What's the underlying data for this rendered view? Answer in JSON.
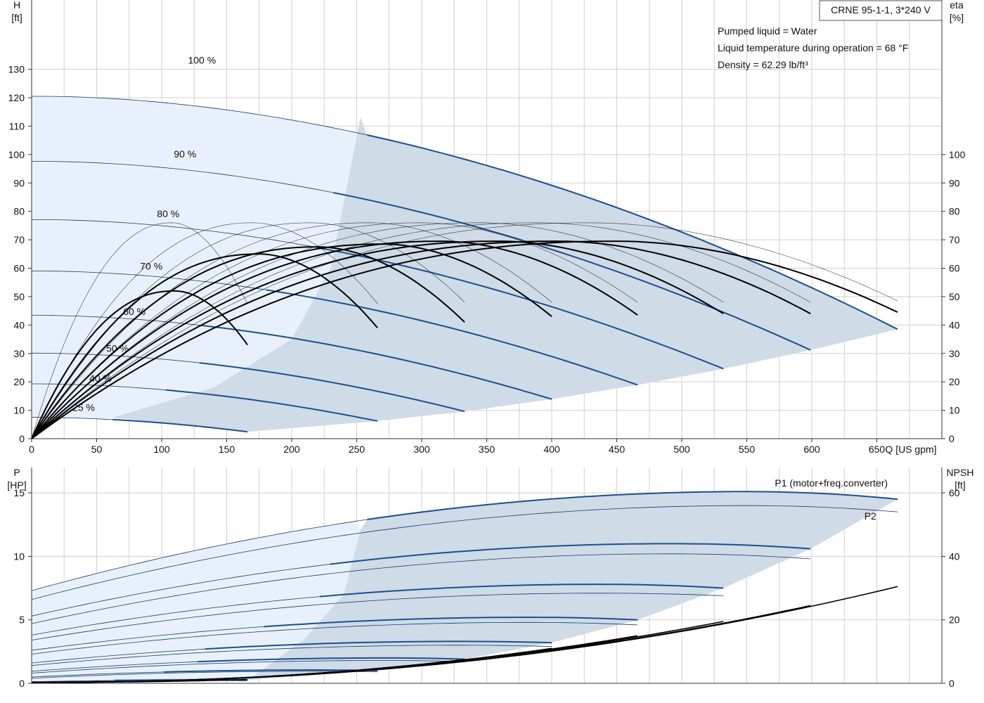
{
  "colors": {
    "accent": "#1f4e8c",
    "region_light": "#e8f1fb",
    "region_dark": "#cfdbe7",
    "thin_line": "#1a3a66",
    "eta": "#000000",
    "grid": "#cfcfcf"
  },
  "header": {
    "product": "CRNE 95-1-1, 3*240 V",
    "info": [
      "Pumped liquid = Water",
      "Liquid temperature during operation = 68 °F",
      "Density = 62.29 lb/ft³"
    ]
  },
  "chart_data": [
    {
      "type": "line",
      "name": "head",
      "title": "",
      "xlabel": "Q [US gpm]",
      "ylabel": "H [ft]",
      "y2label": "eta [%]",
      "y_axis_label_lines": [
        "H",
        "[ft]"
      ],
      "y2_axis_label_lines": [
        "eta",
        "[%]"
      ],
      "xlim": [
        0,
        700
      ],
      "ylim": [
        0,
        144
      ],
      "y2lim": [
        0,
        144
      ],
      "xticks": [
        0,
        50,
        100,
        150,
        200,
        250,
        300,
        350,
        400,
        450,
        500,
        550,
        600,
        650
      ],
      "yticks": [
        0,
        10,
        20,
        30,
        40,
        50,
        60,
        70,
        80,
        90,
        100,
        110,
        120,
        130
      ],
      "y2ticks": [
        0,
        10,
        20,
        30,
        40,
        50,
        60,
        70,
        80,
        90,
        100
      ],
      "grid": true,
      "speed_curves": [
        {
          "label": "100 %",
          "label_at": [
            131,
            132
          ],
          "h0": 120.5,
          "qmax": 666,
          "hend": 38.5,
          "peak_q": 50,
          "peak_rise": 0.6
        },
        {
          "label": "90 %",
          "label_at": [
            118,
            99
          ],
          "h0": 97.6,
          "qmax": 599,
          "hend": 31.2,
          "peak_q": 45,
          "peak_rise": 0.5
        },
        {
          "label": "80 %",
          "label_at": [
            105,
            78
          ],
          "h0": 77.1,
          "qmax": 532,
          "hend": 24.6,
          "peak_q": 40,
          "peak_rise": 0.4
        },
        {
          "label": "70 %",
          "label_at": [
            92,
            59.5
          ],
          "h0": 59.0,
          "qmax": 466,
          "hend": 18.9,
          "peak_q": 35,
          "peak_rise": 0.3
        },
        {
          "label": "60 %",
          "label_at": [
            79,
            43.5
          ],
          "h0": 43.4,
          "qmax": 400,
          "hend": 13.9,
          "peak_q": 30,
          "peak_rise": 0.2
        },
        {
          "label": "50 %",
          "label_at": [
            66,
            30.5
          ],
          "h0": 30.1,
          "qmax": 333,
          "hend": 9.6,
          "peak_q": 25,
          "peak_rise": 0.15
        },
        {
          "label": "40 %",
          "label_at": [
            53,
            20
          ],
          "h0": 19.3,
          "qmax": 266,
          "hend": 6.2,
          "peak_q": 20,
          "peak_rise": 0.1
        },
        {
          "label": "25 %",
          "label_at": [
            40,
            9.8
          ],
          "h0": 7.5,
          "qmax": 166,
          "hend": 2.4,
          "peak_q": 12,
          "peak_rise": 0.05
        }
      ],
      "efficiency_curves": [
        {
          "qmax": 166,
          "peak_q": 110,
          "peak": 52,
          "end": 33,
          "bold": true
        },
        {
          "qmax": 266,
          "peak_q": 175,
          "peak": 65,
          "end": 39,
          "bold": true
        },
        {
          "qmax": 333,
          "peak_q": 220,
          "peak": 67.5,
          "end": 41,
          "bold": true
        },
        {
          "qmax": 400,
          "peak_q": 270,
          "peak": 68.5,
          "end": 43,
          "bold": true
        },
        {
          "qmax": 466,
          "peak_q": 315,
          "peak": 69.5,
          "end": 43.5,
          "bold": true
        },
        {
          "qmax": 532,
          "peak_q": 360,
          "peak": 69.5,
          "end": 44,
          "bold": true
        },
        {
          "qmax": 599,
          "peak_q": 405,
          "peak": 69.5,
          "end": 44,
          "bold": true
        },
        {
          "qmax": 666,
          "peak_q": 450,
          "peak": 69.5,
          "end": 44.5,
          "bold": true
        },
        {
          "qmax": 166,
          "peak_q": 108,
          "peak": 76,
          "end": 47.5,
          "bold": false
        },
        {
          "qmax": 266,
          "peak_q": 170,
          "peak": 76,
          "end": 47.5,
          "bold": false
        },
        {
          "qmax": 333,
          "peak_q": 215,
          "peak": 76,
          "end": 48,
          "bold": false
        },
        {
          "qmax": 400,
          "peak_q": 260,
          "peak": 76,
          "end": 48,
          "bold": false
        },
        {
          "qmax": 466,
          "peak_q": 300,
          "peak": 76,
          "end": 48,
          "bold": false
        },
        {
          "qmax": 532,
          "peak_q": 345,
          "peak": 76,
          "end": 48,
          "bold": false
        },
        {
          "qmax": 599,
          "peak_q": 390,
          "peak": 76,
          "end": 48,
          "bold": false
        },
        {
          "qmax": 666,
          "peak_q": 430,
          "peak": 76,
          "end": 48.5,
          "bold": false
        }
      ],
      "operating_region": [
        [
          62,
          7.4
        ],
        [
          166,
          2.4
        ],
        [
          266,
          6.2
        ],
        [
          333,
          9.6
        ],
        [
          400,
          13.9
        ],
        [
          466,
          18.9
        ],
        [
          532,
          24.6
        ],
        [
          599,
          31.2
        ],
        [
          666,
          38.5
        ]
      ],
      "light_boundary": [
        [
          62,
          7.4
        ],
        [
          140,
          18
        ],
        [
          200,
          35
        ],
        [
          230,
          60
        ],
        [
          253,
          113
        ]
      ]
    },
    {
      "type": "line",
      "name": "power",
      "title": "",
      "xlabel": "",
      "ylabel": "P [HP]",
      "y2label": "NPSH [ft]",
      "y_axis_label_lines": [
        "P",
        "[HP]"
      ],
      "y2_axis_label_lines": [
        "NPSH",
        "[ft]"
      ],
      "xlim": [
        0,
        700
      ],
      "ylim": [
        0,
        17
      ],
      "y2lim": [
        0,
        68
      ],
      "yticks": [
        0,
        5,
        10,
        15
      ],
      "y2ticks": [
        0,
        20,
        40,
        60
      ],
      "grid": true,
      "series": [
        {
          "name": "P1 (motor+freq.converter)",
          "label_at": [
            615,
            15.5
          ],
          "p0": 7.3,
          "qmax": 666,
          "pend": 14.5,
          "peak_q": 550,
          "peak": 15.1
        },
        {
          "name": "P2",
          "label_at": [
            645,
            12.9
          ],
          "p0": 6.6,
          "qmax": 666,
          "pend": 13.5,
          "peak_q": 550,
          "peak": 14.0
        }
      ],
      "p1_curves": [
        {
          "qmax": 599,
          "p0": 5.3,
          "pend": 10.6,
          "peak": 11.0
        },
        {
          "qmax": 532,
          "p0": 3.8,
          "pend": 7.5,
          "peak": 7.8
        },
        {
          "qmax": 466,
          "p0": 2.6,
          "pend": 5.0,
          "peak": 5.2
        },
        {
          "qmax": 400,
          "p0": 1.6,
          "pend": 3.2,
          "peak": 3.3
        },
        {
          "qmax": 333,
          "p0": 0.95,
          "pend": 1.9,
          "peak": 2.0
        },
        {
          "qmax": 266,
          "p0": 0.5,
          "pend": 1.0,
          "peak": 1.05
        },
        {
          "qmax": 166,
          "p0": 0.12,
          "pend": 0.25,
          "peak": 0.27
        }
      ],
      "p2_curves": [
        {
          "qmax": 599,
          "p0": 4.7,
          "pend": 9.8,
          "peak": 10.2
        },
        {
          "qmax": 532,
          "p0": 3.4,
          "pend": 6.9,
          "peak": 7.1
        },
        {
          "qmax": 466,
          "p0": 2.3,
          "pend": 4.6,
          "peak": 4.8
        },
        {
          "qmax": 400,
          "p0": 1.4,
          "pend": 2.9,
          "peak": 3.0
        },
        {
          "qmax": 333,
          "p0": 0.8,
          "pend": 1.7,
          "peak": 1.8
        },
        {
          "qmax": 266,
          "p0": 0.4,
          "pend": 0.9,
          "peak": 0.95
        },
        {
          "qmax": 166,
          "p0": 0.1,
          "pend": 0.2,
          "peak": 0.22
        }
      ],
      "npsh_curves": [
        {
          "qmax": 166,
          "end": 1.2
        },
        {
          "qmax": 266,
          "end": 4.5
        },
        {
          "qmax": 333,
          "end": 7.5
        },
        {
          "qmax": 400,
          "end": 11
        },
        {
          "qmax": 466,
          "end": 15
        },
        {
          "qmax": 532,
          "end": 19.5
        },
        {
          "qmax": 599,
          "end": 24.5
        },
        {
          "qmax": 666,
          "end": 30.5
        }
      ],
      "region": [
        [
          62,
          0.27
        ],
        [
          166,
          0.25
        ],
        [
          266,
          1.0
        ],
        [
          333,
          1.9
        ],
        [
          400,
          3.2
        ],
        [
          466,
          5.0
        ],
        [
          532,
          7.5
        ],
        [
          599,
          10.6
        ],
        [
          666,
          14.5
        ]
      ],
      "light_boundary": [
        [
          62,
          0.3
        ],
        [
          170,
          0.5
        ],
        [
          210,
          3.5
        ],
        [
          240,
          7
        ],
        [
          253,
          12.1
        ]
      ]
    }
  ]
}
